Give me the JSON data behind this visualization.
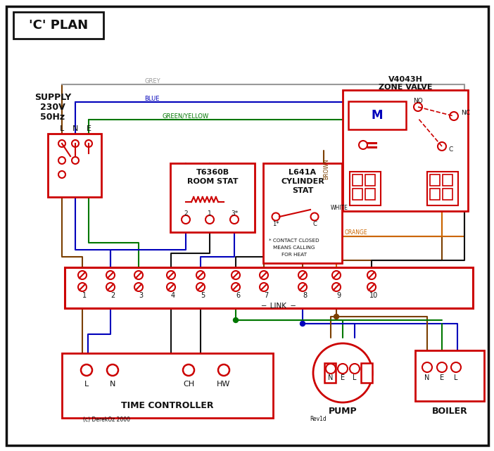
{
  "title": "'C' PLAN",
  "red": "#cc0000",
  "blue": "#0000bb",
  "green": "#007700",
  "brown": "#7B3F00",
  "grey": "#999999",
  "orange": "#cc6600",
  "black": "#111111",
  "terminal_numbers": [
    "1",
    "2",
    "3",
    "4",
    "5",
    "6",
    "7",
    "8",
    "9",
    "10"
  ],
  "supply_lines": [
    "SUPPLY",
    "230V",
    "50Hz"
  ],
  "lne": [
    "L",
    "N",
    "E"
  ],
  "zone_valve_title": [
    "V4043H",
    "ZONE VALVE"
  ],
  "room_stat_title": [
    "T6360B",
    "ROOM STAT"
  ],
  "cylinder_stat_title": [
    "L641A",
    "CYLINDER",
    "STAT"
  ],
  "tc_label": "TIME CONTROLLER",
  "tc_terminals": [
    "L",
    "N",
    "CH",
    "HW"
  ],
  "pump_label": "PUMP",
  "pump_terminals": [
    "N",
    "E",
    "L"
  ],
  "boiler_label": "BOILER",
  "boiler_terminals": [
    "N",
    "E",
    "L"
  ],
  "link_label": "LINK",
  "contact_note": [
    "* CONTACT CLOSED",
    "MEANS CALLING",
    "FOR HEAT"
  ],
  "copyright": "(c) DerekOz 2000",
  "rev": "Rev1d",
  "wire_label_grey": "GREY",
  "wire_label_blue": "BLUE",
  "wire_label_gy": "GREEN/YELLOW",
  "wire_label_brown": "BROWN",
  "wire_label_white": "WHITE",
  "wire_label_orange": "ORANGE"
}
